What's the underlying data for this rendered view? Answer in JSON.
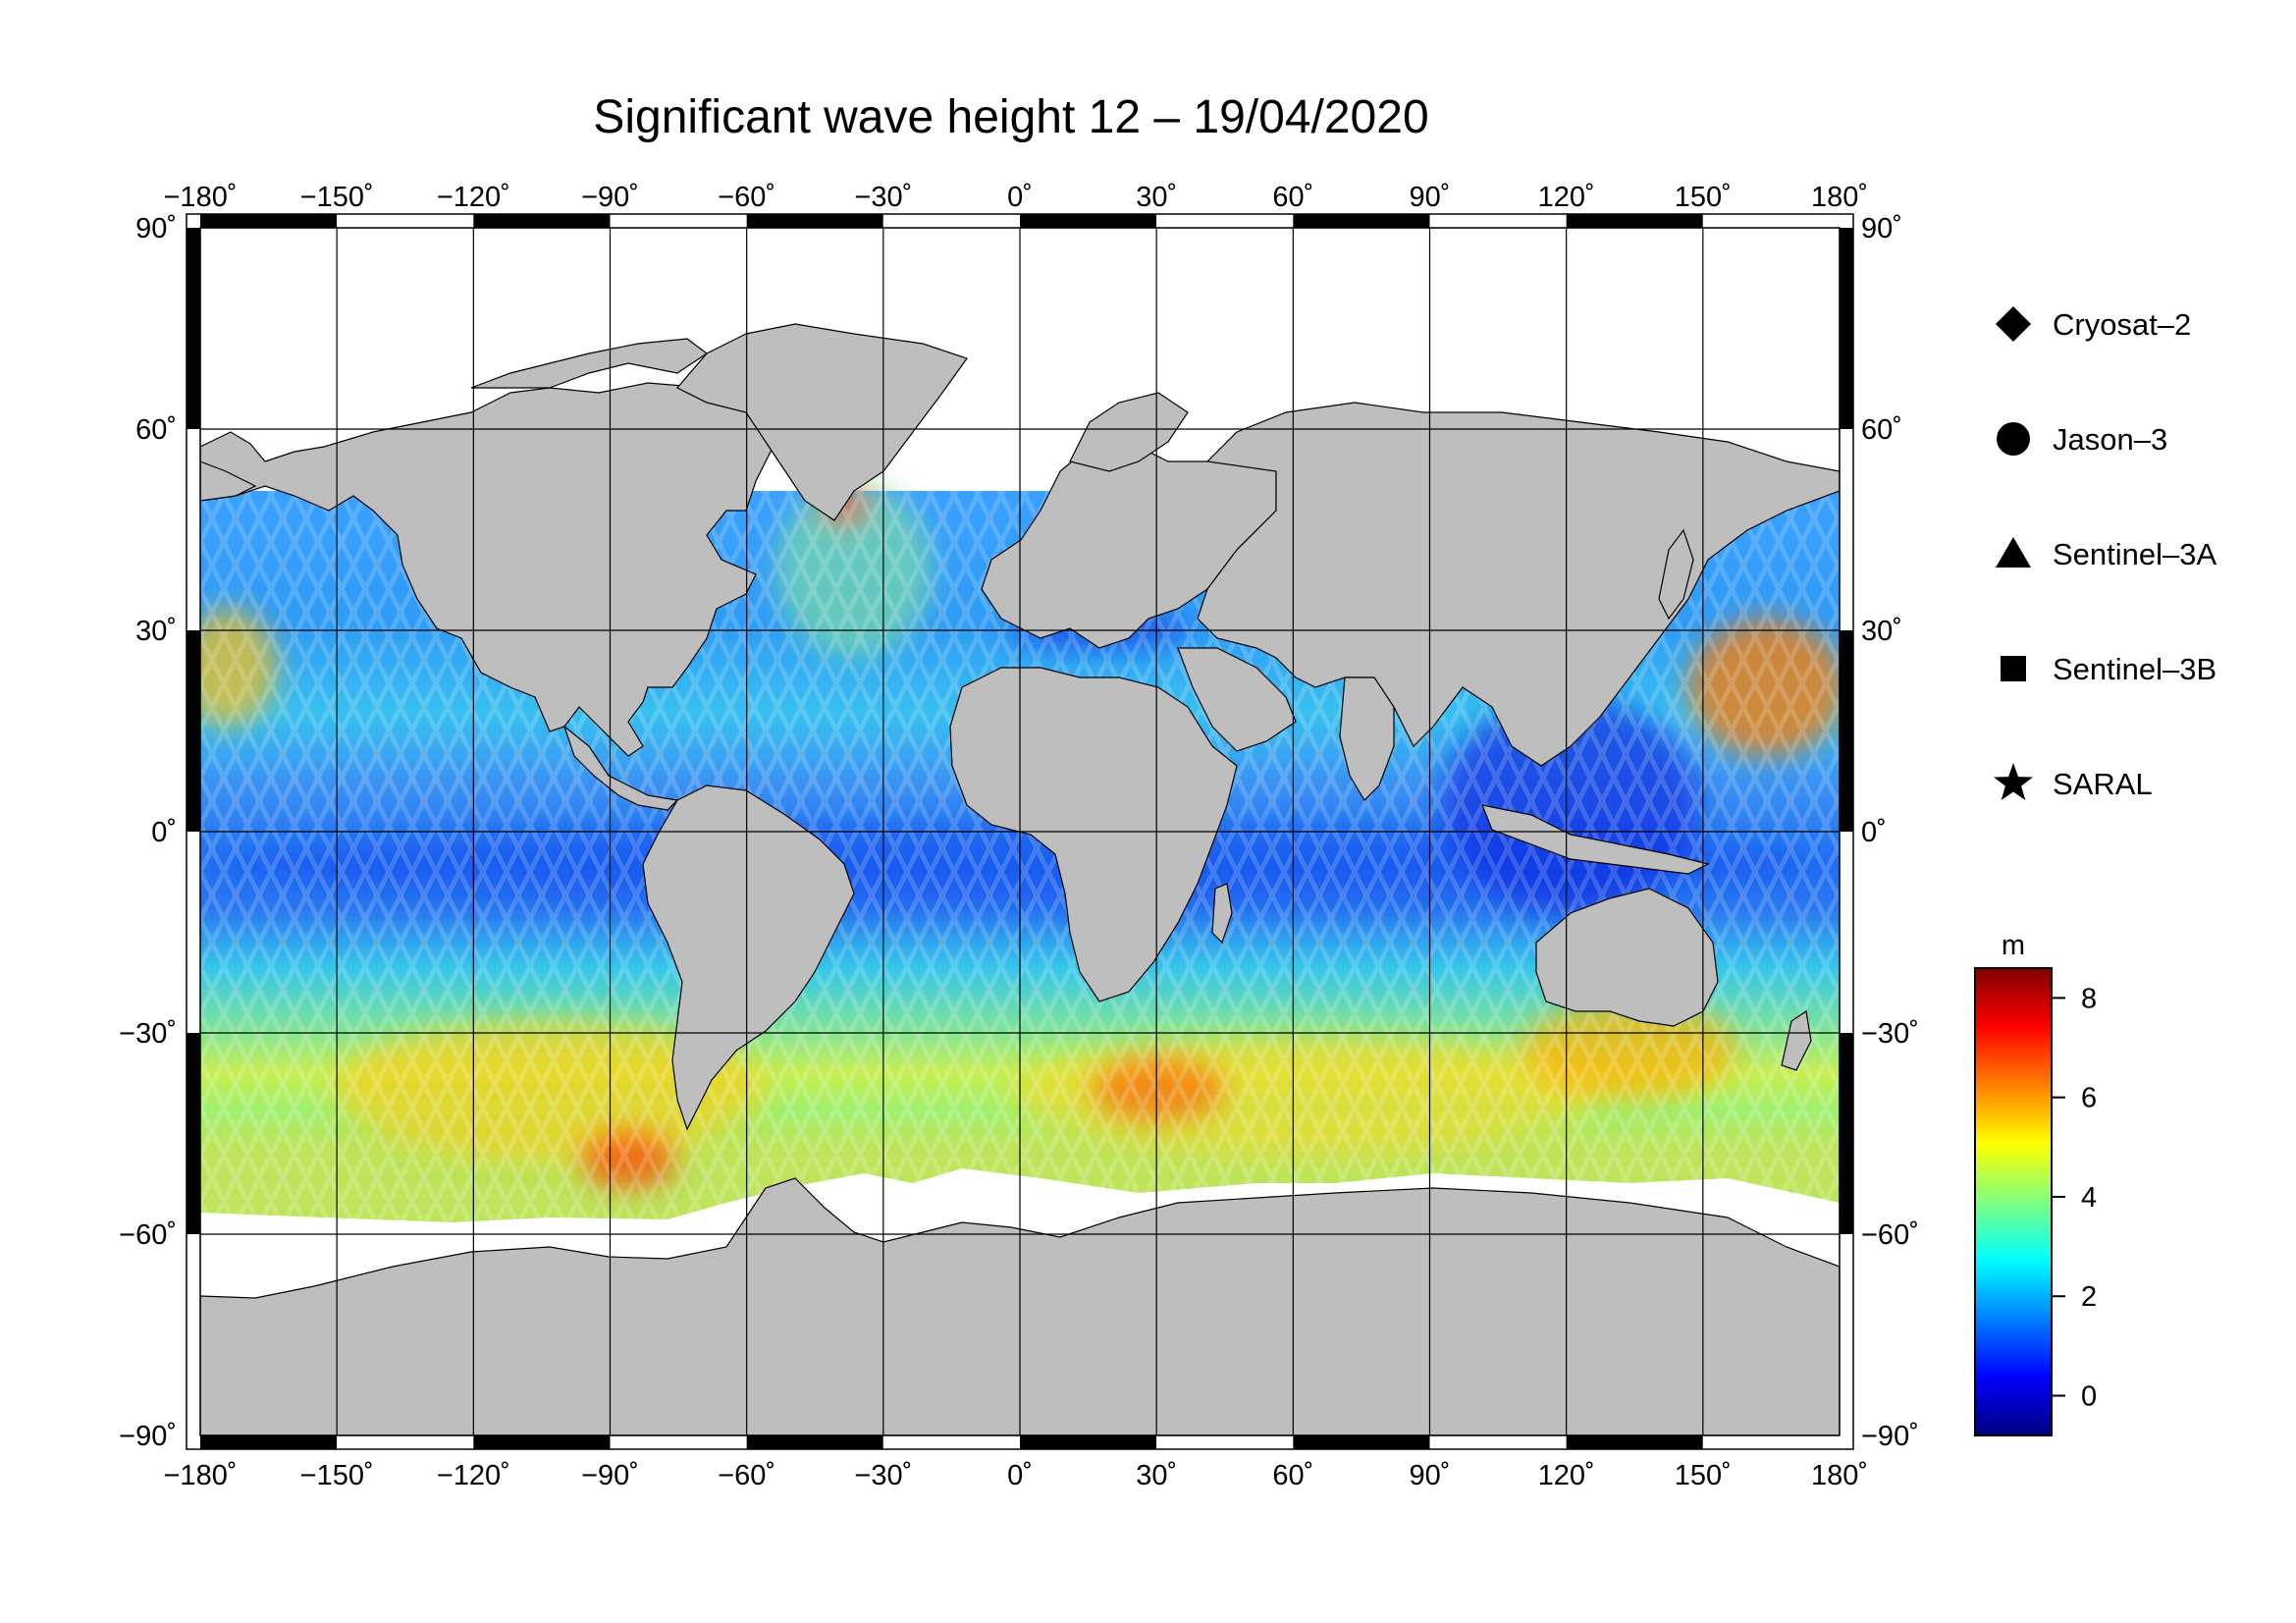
{
  "title": "Significant wave height 12 – 19/04/2020",
  "map": {
    "projection": "plate-carree",
    "lon_range": [
      -180,
      180
    ],
    "lat_range": [
      -90,
      90
    ],
    "lon_ticks": [
      {
        "value": -180,
        "label": "−180˚"
      },
      {
        "value": -150,
        "label": "−150˚"
      },
      {
        "value": -120,
        "label": "−120˚"
      },
      {
        "value": -90,
        "label": "−90˚"
      },
      {
        "value": -60,
        "label": "−60˚"
      },
      {
        "value": -30,
        "label": "−30˚"
      },
      {
        "value": 0,
        "label": "0˚"
      },
      {
        "value": 30,
        "label": "30˚"
      },
      {
        "value": 60,
        "label": "60˚"
      },
      {
        "value": 90,
        "label": "90˚"
      },
      {
        "value": 120,
        "label": "120˚"
      },
      {
        "value": 150,
        "label": "150˚"
      },
      {
        "value": 180,
        "label": "180˚"
      }
    ],
    "lat_ticks": [
      {
        "value": 90,
        "label": "90˚"
      },
      {
        "value": 60,
        "label": "60˚"
      },
      {
        "value": 30,
        "label": "30˚"
      },
      {
        "value": 0,
        "label": "0˚"
      },
      {
        "value": -30,
        "label": "−30˚"
      },
      {
        "value": -60,
        "label": "−60˚"
      },
      {
        "value": -90,
        "label": "−90˚"
      }
    ],
    "land_color": "#bebebe",
    "ice_color": "#ffffff",
    "grid": true
  },
  "legend": {
    "items": [
      {
        "symbol": "diamond",
        "label": "Cryosat–2"
      },
      {
        "symbol": "circle",
        "label": "Jason–3"
      },
      {
        "symbol": "triangle",
        "label": "Sentinel–3A"
      },
      {
        "symbol": "square",
        "label": "Sentinel–3B"
      },
      {
        "symbol": "star",
        "label": "SARAL"
      }
    ]
  },
  "colorbar": {
    "unit": "m",
    "range": [
      -0.8,
      8.6
    ],
    "ticks": [
      {
        "value": 0,
        "label": "0"
      },
      {
        "value": 2,
        "label": "2"
      },
      {
        "value": 4,
        "label": "4"
      },
      {
        "value": 6,
        "label": "6"
      },
      {
        "value": 8,
        "label": "8"
      }
    ],
    "colormap": [
      "#000080",
      "#0000ff",
      "#0080ff",
      "#00ffff",
      "#80ff80",
      "#ffff00",
      "#ff8000",
      "#ff0000",
      "#800000"
    ]
  },
  "chart_data": {
    "type": "heatmap",
    "title": "Significant wave height 12 – 19/04/2020",
    "x_range": [
      -180,
      180
    ],
    "y_range": [
      -90,
      90
    ],
    "value_unit": "m",
    "value_range": [
      0,
      8
    ],
    "regions": [
      {
        "lon": [
          -180,
          180
        ],
        "lat": [
          -10,
          15
        ],
        "swh": 1.8
      },
      {
        "lon": [
          -180,
          -70
        ],
        "lat": [
          -65,
          -35
        ],
        "swh": 4.5
      },
      {
        "lon": [
          20,
          140
        ],
        "lat": [
          -60,
          -40
        ],
        "swh": 5.0
      },
      {
        "lon": [
          150,
          180
        ],
        "lat": [
          25,
          50
        ],
        "swh": 5.5
      },
      {
        "lon": [
          -180,
          -150
        ],
        "lat": [
          30,
          50
        ],
        "swh": 4.5
      },
      {
        "lon": [
          -60,
          0
        ],
        "lat": [
          40,
          65
        ],
        "swh": 3.5
      },
      {
        "lon": [
          40,
          100
        ],
        "lat": [
          -30,
          10
        ],
        "swh": 2.0
      },
      {
        "lon": [
          100,
          150
        ],
        "lat": [
          -10,
          30
        ],
        "swh": 1.2
      }
    ]
  }
}
